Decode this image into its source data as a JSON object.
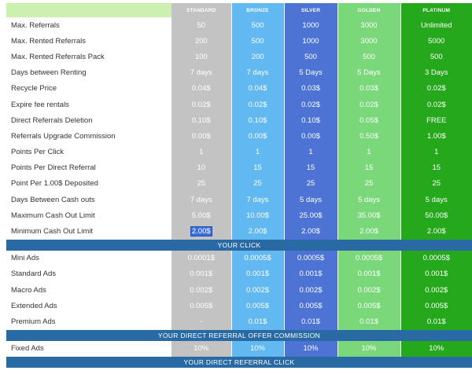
{
  "columns": [
    "STANDARD",
    "BRONZE",
    "SILVER",
    "GOLDEN",
    "PLATINUM"
  ],
  "colors": {
    "standard": "#c3c3c3",
    "bronze": "#62b8f0",
    "silver": "#4d73d4",
    "golden": "#7ad87a",
    "platinum": "#25a81b",
    "section_band": "#2a6aa4",
    "header_corner": "#ccf0b0"
  },
  "section1_rows": [
    {
      "label": "Max. Referrals",
      "values": [
        "50",
        "500",
        "1000",
        "3000",
        "Unlimited"
      ]
    },
    {
      "label": "Max. Rented Referrals",
      "values": [
        "200",
        "500",
        "1000",
        "3000",
        "5000"
      ]
    },
    {
      "label": "Max. Rented Referrals Pack",
      "values": [
        "100",
        "200",
        "500",
        "500",
        "500"
      ]
    },
    {
      "label": "Days between Renting",
      "values": [
        "7 days",
        "7 days",
        "5 Days",
        "5 Days",
        "3 Days"
      ]
    },
    {
      "label": "Recycle Price",
      "values": [
        "0.04$",
        "0.04$",
        "0.03$",
        "0.03$",
        "0.02$"
      ]
    },
    {
      "label": "Expire fee rentals",
      "values": [
        "0.02$",
        "0.02$",
        "0.02$",
        "0.02$",
        "0.02$"
      ]
    },
    {
      "label": "Direct Referrals Deletion",
      "values": [
        "0.10$",
        "0.10$",
        "0.10$",
        "0.05$",
        "FREE"
      ]
    },
    {
      "label": "Referrals Upgrade Commission",
      "values": [
        "0.00$",
        "0.00$",
        "0.00$",
        "0.50$",
        "1.00$"
      ]
    },
    {
      "label": "Points Per Click",
      "values": [
        "1",
        "1",
        "1",
        "1",
        "1"
      ]
    },
    {
      "label": "Points Per Direct Referral",
      "values": [
        "10",
        "15",
        "15",
        "15",
        "15"
      ]
    },
    {
      "label": "Point Per 1.00$ Deposited",
      "values": [
        "25",
        "25",
        "25",
        "25",
        "25"
      ]
    },
    {
      "label": "Days Between Cash outs",
      "values": [
        "7 days",
        "7 days",
        "5 days",
        "5 days",
        "5 days"
      ]
    },
    {
      "label": "Maximum Cash Out Limit",
      "values": [
        "5.00$",
        "10.00$",
        "25.00$",
        "35.00$",
        "50.00$"
      ]
    },
    {
      "label": "Minimum Cash Out Limit",
      "values": [
        "2.00$",
        "2.00$",
        "2.00$",
        "2.00$",
        "2.00$"
      ]
    }
  ],
  "section_your_click": "YOUR CLICK",
  "section2_rows": [
    {
      "label": "Mini Ads",
      "values": [
        "0.0001$",
        "0.0005$",
        "0.0005$",
        "0.0005$",
        "0.0005$"
      ]
    },
    {
      "label": "Standard Ads",
      "values": [
        "0.001$",
        "0.001$",
        "0.001$",
        "0.001$",
        "0.001$"
      ]
    },
    {
      "label": "Macro Ads",
      "values": [
        "0.002$",
        "0.002$",
        "0.002$",
        "0.002$",
        "0.002$"
      ]
    },
    {
      "label": "Extended Ads",
      "values": [
        "0.005$",
        "0.005$",
        "0.005$",
        "0.005$",
        "0.005$"
      ]
    },
    {
      "label": "Premium Ads",
      "values": [
        "-",
        "0.01$",
        "0.01$",
        "0.01$",
        "0.01$"
      ]
    }
  ],
  "section_offer_commission": "YOUR DIRECT REFERRAL OFFER COMMISSION",
  "section3_rows": [
    {
      "label": "Fixed Ads",
      "values": [
        "10%",
        "10%",
        "10%",
        "10%",
        "10%"
      ]
    }
  ],
  "section_direct_click": "YOUR DIRECT REFERRAL CLICK"
}
